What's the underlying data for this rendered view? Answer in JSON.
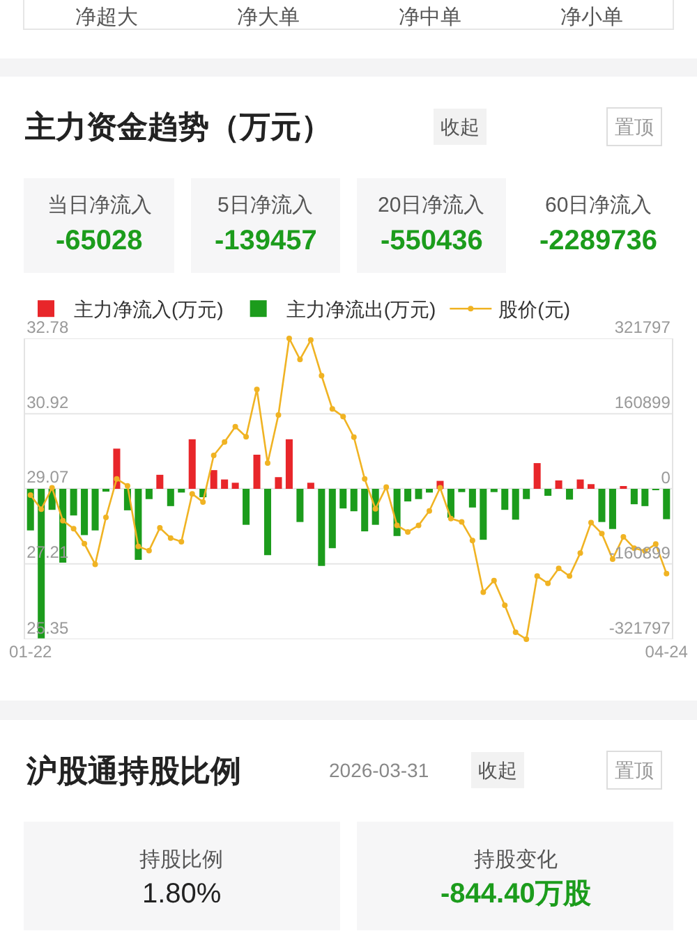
{
  "chart_data": {
    "type": "bar",
    "title": "主力资金趋势（万元）",
    "categories": [
      "01-22",
      null,
      null,
      null,
      null,
      null,
      null,
      null,
      null,
      null,
      null,
      null,
      null,
      null,
      null,
      null,
      null,
      null,
      null,
      null,
      null,
      null,
      null,
      null,
      null,
      null,
      null,
      null,
      null,
      null,
      null,
      null,
      null,
      null,
      null,
      null,
      null,
      null,
      null,
      null,
      null,
      null,
      null,
      null,
      null,
      null,
      null,
      null,
      null,
      null,
      null,
      null,
      null,
      null,
      null,
      null,
      null,
      null,
      null,
      "04-24"
    ],
    "series": [
      {
        "name": "主力净流入(万元)",
        "axis": "y2",
        "color": "#e8262a",
        "values": [
          null,
          null,
          null,
          null,
          null,
          null,
          null,
          null,
          86000,
          null,
          null,
          null,
          30000,
          null,
          null,
          106000,
          null,
          40000,
          20000,
          13000,
          null,
          73000,
          null,
          25000,
          106000,
          null,
          13000,
          null,
          null,
          null,
          null,
          null,
          null,
          null,
          null,
          null,
          null,
          null,
          17000,
          null,
          null,
          null,
          null,
          null,
          null,
          null,
          null,
          55000,
          null,
          18000,
          null,
          20000,
          10000,
          null,
          null,
          3000,
          null,
          null,
          null,
          null
        ]
      },
      {
        "name": "主力净流出(万元)",
        "axis": "y2",
        "color": "#1c9c1c",
        "values": [
          -89000,
          -320000,
          -45000,
          -158000,
          -57000,
          -99000,
          -89000,
          -3000,
          null,
          -46000,
          -152000,
          -22000,
          null,
          -37000,
          -8000,
          null,
          -18000,
          null,
          null,
          null,
          -77000,
          null,
          -142000,
          null,
          null,
          -71000,
          null,
          -165000,
          -127000,
          -42000,
          -48000,
          -91000,
          -77000,
          null,
          -101000,
          -27000,
          -22000,
          -8000,
          null,
          -62000,
          -7000,
          -40000,
          -109000,
          -7000,
          -45000,
          -66000,
          -22000,
          null,
          -15000,
          null,
          -23000,
          null,
          null,
          -71000,
          -86000,
          null,
          -33000,
          -37000,
          -2000,
          -65000
        ]
      },
      {
        "name": "股价(元)",
        "type": "line",
        "axis": "y",
        "color": "#f0b323",
        "values": [
          28.91,
          28.56,
          29.09,
          28.28,
          28.08,
          27.71,
          27.2,
          28.36,
          29.31,
          29.14,
          27.64,
          27.54,
          28.1,
          27.85,
          27.76,
          28.94,
          28.74,
          29.89,
          30.22,
          30.6,
          30.35,
          31.52,
          29.7,
          30.89,
          32.78,
          32.26,
          32.74,
          31.86,
          31.04,
          30.85,
          30.34,
          29.31,
          28.57,
          29.11,
          28.16,
          28.0,
          28.16,
          28.52,
          29.09,
          28.33,
          28.25,
          27.79,
          26.51,
          26.8,
          26.19,
          25.52,
          25.35,
          26.91,
          26.73,
          27.1,
          26.91,
          27.48,
          28.23,
          27.96,
          27.33,
          27.88,
          27.6,
          27.53,
          27.7,
          26.97
        ]
      }
    ],
    "ylim": [
      25.35,
      32.78
    ],
    "yticks": [
      25.35,
      27.21,
      29.07,
      30.92,
      32.78
    ],
    "y2lim": [
      -321797,
      321797
    ],
    "y2ticks": [
      -321797,
      -160899,
      0,
      160899,
      321797
    ],
    "grid": "y",
    "legend": "top",
    "marker": "circle",
    "annotations": [
      "净超大",
      "净大单",
      "净中单",
      "净小单",
      "收起",
      "置顶",
      "当日净流入",
      "-65028",
      "5日净流入",
      "-139457",
      "20日净流入",
      "-550436",
      "60日净流入",
      "-2289736",
      "沪股通持股比例",
      "2026-03-31",
      "收起",
      "置顶",
      "持股比例",
      "1.80%",
      "持股变化",
      "-844.40万股"
    ]
  }
}
